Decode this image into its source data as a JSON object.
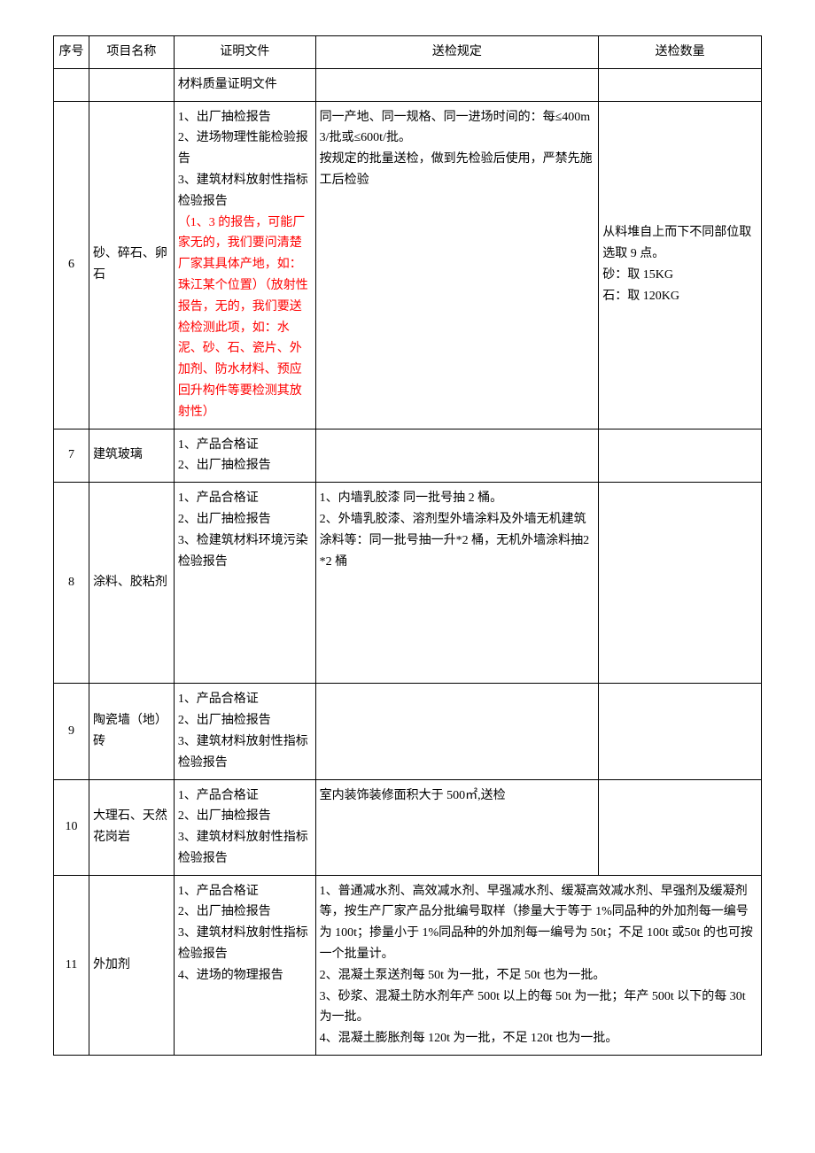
{
  "headers": {
    "seq": "序号",
    "name": "项目名称",
    "doc": "证明文件",
    "rule": "送检规定",
    "qty": "送检数量"
  },
  "rows": [
    {
      "seq": "",
      "name": "",
      "doc_black": "材料质量证明文件",
      "doc_red": "",
      "rule": "",
      "qty": ""
    },
    {
      "seq": "6",
      "name": "砂、碎石、卵石",
      "doc_black": "1、出厂抽检报告\n2、进场物理性能检验报告\n3、建筑材料放射性指标检验报告",
      "doc_red": "（1、3 的报告，可能厂家无的，我们要问清楚厂家其具体产地，如：珠江某个位置）（放射性报告，无的，我们要送检检测此项，如：水泥、砂、石、瓷片、外加剂、防水材料、预应回升构件等要检测其放射性）",
      "rule": "同一产地、同一规格、同一进场时间的：每≤400m3/批或≤600t/批。\n按规定的批量送检，做到先检验后使用，严禁先施工后检验",
      "qty": "从料堆自上而下不同部位取选取 9 点。\n砂：取 15KG\n石：取 120KG"
    },
    {
      "seq": "7",
      "name": "建筑玻璃",
      "doc_black": "1、产品合格证\n2、出厂抽检报告",
      "doc_red": "",
      "rule": "",
      "qty": ""
    },
    {
      "seq": "8",
      "name": "涂料、胶粘剂",
      "doc_black": "1、产品合格证\n2、出厂抽检报告\n3、检建筑材料环境污染检验报告\n\n\n\n\n\n",
      "doc_red": "",
      "rule": "1、内墙乳胶漆  同一批号抽 2 桶。\n2、外墙乳胶漆、溶剂型外墙涂料及外墙无机建筑涂料等：同一批号抽一升*2 桶，无机外墙涂料抽2*2 桶",
      "qty": ""
    },
    {
      "seq": "9",
      "name": "陶瓷墙（地）砖",
      "doc_black": "1、产品合格证\n2、出厂抽检报告\n3、建筑材料放射性指标检验报告",
      "doc_red": "",
      "rule": "",
      "qty": ""
    },
    {
      "seq": "10",
      "name": "大理石、天然花岗岩",
      "doc_black": "1、产品合格证\n2、出厂抽检报告\n3、建筑材料放射性指标检验报告",
      "doc_red": "",
      "rule": "室内装饰装修面积大于 500㎡,送检",
      "qty": ""
    },
    {
      "seq": "11",
      "name": "外加剂",
      "doc_black": "1、产品合格证\n2、出厂抽检报告\n3、建筑材料放射性指标检验报告\n4、进场的物理报告",
      "doc_red": "",
      "rule": "1、普通减水剂、高效减水剂、早强减水剂、缓凝高效减水剂、早强剂及缓凝剂等，按生产厂家产品分批编号取样（掺量大于等于 1%同品种的外加剂每一编号为 100t；掺量小于 1%同品种的外加剂每一编号为 50t；不足 100t 或50t 的也可按一个批量计。\n2、混凝土泵送剂每 50t 为一批，不足 50t 也为一批。\n3、砂浆、混凝土防水剂年产 500t 以上的每 50t 为一批；年产 500t 以下的每 30t 为一批。\n4、混凝土膨胀剂每 120t 为一批，不足 120t 也为一批。",
      "qty": "",
      "merge_rule_qty": true
    }
  ]
}
